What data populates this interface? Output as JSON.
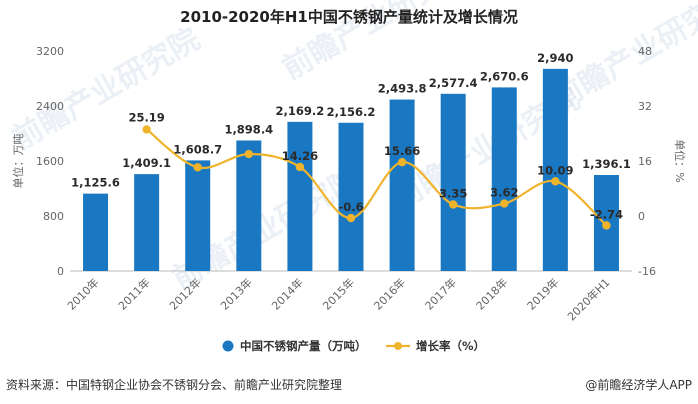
{
  "chart_data": {
    "type": "bar",
    "title": "2010-2020年H1中国不锈钢产量统计及增长情况",
    "categories": [
      "2010年",
      "2011年",
      "2012年",
      "2013年",
      "2014年",
      "2015年",
      "2016年",
      "2017年",
      "2018年",
      "2019年",
      "2020年H1"
    ],
    "series": [
      {
        "name": "中国不锈钢产量（万吨）",
        "type": "bar",
        "axis": "left",
        "color": "#1a78c2",
        "values": [
          1125.6,
          1409.1,
          1608.7,
          1898.4,
          2169.2,
          2156.2,
          2493.8,
          2577.4,
          2670.6,
          2940,
          1396.1
        ],
        "labels": [
          "1,125.6",
          "1,409.1",
          "1,608.7",
          "1,898.4",
          "2,169.2",
          "2,156.2",
          "2,493.8",
          "2,577.4",
          "2,670.6",
          "2,940",
          "1,396.1"
        ]
      },
      {
        "name": "增长率（%）",
        "type": "line",
        "axis": "right",
        "color": "#f0b42c",
        "values": [
          null,
          25.19,
          14.16,
          18.01,
          14.26,
          -0.6,
          15.66,
          3.35,
          3.62,
          10.09,
          -2.74
        ],
        "labels": [
          "",
          "25.19",
          "",
          "",
          "14.26",
          "-0.6",
          "15.66",
          "3.35",
          "3.62",
          "10.09",
          "-2.74"
        ]
      }
    ],
    "ylabel": "单位：万吨",
    "ylabel_right": "单位：%",
    "ylim": [
      0,
      3200
    ],
    "yticks": [
      0,
      800,
      1600,
      2400,
      3200
    ],
    "ylim_right": [
      -16,
      48
    ],
    "yticks_right": [
      -16,
      0,
      16,
      32,
      48
    ],
    "legend_position": "bottom",
    "grid": false
  },
  "footer": {
    "source": "资料来源：中国特钢企业协会不锈钢分会、前瞻产业研究院整理",
    "brand": "@前瞻经济学人APP"
  },
  "watermark": "前瞻产业研究院"
}
